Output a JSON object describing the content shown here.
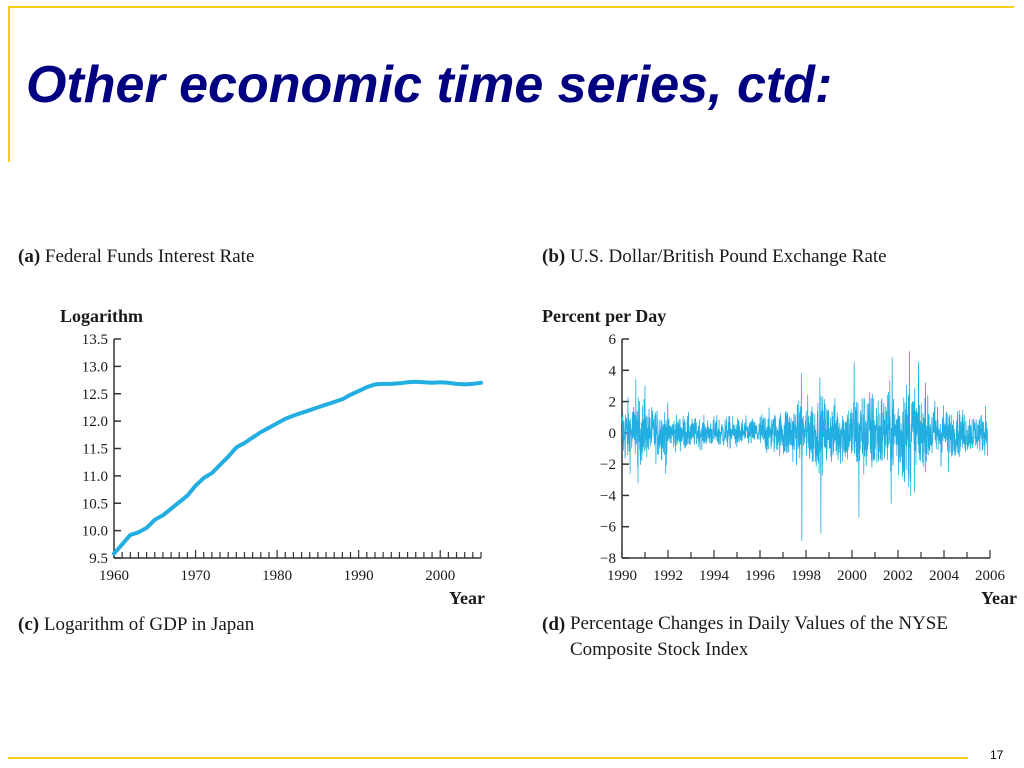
{
  "slide": {
    "title": "Other economic time series, ctd:",
    "page_number": "17",
    "frame_color": "#f5cc1a",
    "title_color": "#000080"
  },
  "panels": {
    "a": {
      "letter": "(a)",
      "text": "Federal Funds Interest Rate"
    },
    "b": {
      "letter": "(b)",
      "text": "U.S. Dollar/British Pound Exchange Rate"
    },
    "c": {
      "letter": "(c)",
      "text": "Logarithm of GDP in Japan"
    },
    "d": {
      "letter": "(d)",
      "text": "Percentage Changes in Daily Values of the NYSE Composite Stock Index"
    }
  },
  "chart_data": [
    {
      "type": "line",
      "ylabel": "Logarithm",
      "xlabel": "Year",
      "xlim": [
        1960,
        2005
      ],
      "ylim": [
        9.5,
        13.5
      ],
      "xticks": [
        1960,
        1970,
        1980,
        1990,
        2000
      ],
      "yticks": [
        9.5,
        10.0,
        10.5,
        11.0,
        11.5,
        12.0,
        12.5,
        13.0,
        13.5
      ],
      "ytick_labels": [
        "9.5",
        "10.0",
        "10.5",
        "11.0",
        "11.5",
        "12.0",
        "12.5",
        "13.0",
        "13.5"
      ],
      "grid": false,
      "color": "#22aee0",
      "x": [
        1960,
        1961,
        1962,
        1963,
        1964,
        1965,
        1966,
        1967,
        1968,
        1969,
        1970,
        1971,
        1972,
        1973,
        1974,
        1975,
        1976,
        1977,
        1978,
        1979,
        1980,
        1981,
        1982,
        1983,
        1984,
        1985,
        1986,
        1987,
        1988,
        1989,
        1990,
        1991,
        1992,
        1993,
        1994,
        1995,
        1996,
        1997,
        1998,
        1999,
        2000,
        2001,
        2002,
        2003,
        2004,
        2005
      ],
      "y": [
        9.58,
        9.75,
        9.92,
        9.97,
        10.05,
        10.2,
        10.28,
        10.4,
        10.52,
        10.64,
        10.82,
        10.96,
        11.05,
        11.2,
        11.35,
        11.52,
        11.6,
        11.7,
        11.8,
        11.88,
        11.96,
        12.04,
        12.1,
        12.15,
        12.2,
        12.25,
        12.3,
        12.35,
        12.4,
        12.48,
        12.55,
        12.62,
        12.67,
        12.68,
        12.68,
        12.69,
        12.71,
        12.72,
        12.71,
        12.7,
        12.71,
        12.7,
        12.68,
        12.67,
        12.68,
        12.7
      ]
    },
    {
      "type": "line",
      "ylabel": "Percent per Day",
      "xlabel": "Year",
      "xlim": [
        1990,
        2006
      ],
      "ylim": [
        -8,
        6
      ],
      "xticks": [
        1990,
        1992,
        1994,
        1996,
        1998,
        2000,
        2002,
        2004,
        2006
      ],
      "minor_xticks": [
        1991,
        1993,
        1995,
        1997,
        1999,
        2001,
        2003,
        2005
      ],
      "yticks": [
        -8,
        -6,
        -4,
        -2,
        0,
        2,
        4,
        6
      ],
      "ytick_labels": [
        "−8",
        "−6",
        "−4",
        "−2",
        "0",
        "2",
        "4",
        "6"
      ],
      "grid": false,
      "color": "#22aee0",
      "volatility_by_year": [
        {
          "year": 1990,
          "typical_abs_change": 1.0
        },
        {
          "year": 1991,
          "typical_abs_change": 0.8
        },
        {
          "year": 1992,
          "typical_abs_change": 0.55
        },
        {
          "year": 1993,
          "typical_abs_change": 0.45
        },
        {
          "year": 1994,
          "typical_abs_change": 0.5
        },
        {
          "year": 1995,
          "typical_abs_change": 0.45
        },
        {
          "year": 1996,
          "typical_abs_change": 0.65
        },
        {
          "year": 1997,
          "typical_abs_change": 0.9
        },
        {
          "year": 1998,
          "typical_abs_change": 1.1
        },
        {
          "year": 1999,
          "typical_abs_change": 1.0
        },
        {
          "year": 2000,
          "typical_abs_change": 1.35
        },
        {
          "year": 2001,
          "typical_abs_change": 1.3
        },
        {
          "year": 2002,
          "typical_abs_change": 1.6
        },
        {
          "year": 2003,
          "typical_abs_change": 1.0
        },
        {
          "year": 2004,
          "typical_abs_change": 0.7
        },
        {
          "year": 2005,
          "typical_abs_change": 0.6
        }
      ],
      "extreme_moves": [
        {
          "date": 1990.6,
          "value": 3.4
        },
        {
          "date": 1990.7,
          "value": -3.2
        },
        {
          "date": 1991.0,
          "value": 3.0
        },
        {
          "date": 1991.9,
          "value": -2.6
        },
        {
          "date": 1997.8,
          "value": 3.8
        },
        {
          "date": 1997.82,
          "value": -6.9
        },
        {
          "date": 1998.6,
          "value": 3.5
        },
        {
          "date": 1998.65,
          "value": -6.4
        },
        {
          "date": 2000.1,
          "value": 4.5
        },
        {
          "date": 2000.3,
          "value": -5.4
        },
        {
          "date": 2001.7,
          "value": -4.5
        },
        {
          "date": 2001.75,
          "value": 4.8
        },
        {
          "date": 2002.5,
          "value": 5.2
        },
        {
          "date": 2002.55,
          "value": -4.0
        },
        {
          "date": 2002.9,
          "value": 4.5
        },
        {
          "date": 2003.2,
          "value": 3.2
        },
        {
          "date": 2004.2,
          "value": -2.5
        },
        {
          "date": 2005.8,
          "value": 1.7
        }
      ]
    }
  ]
}
